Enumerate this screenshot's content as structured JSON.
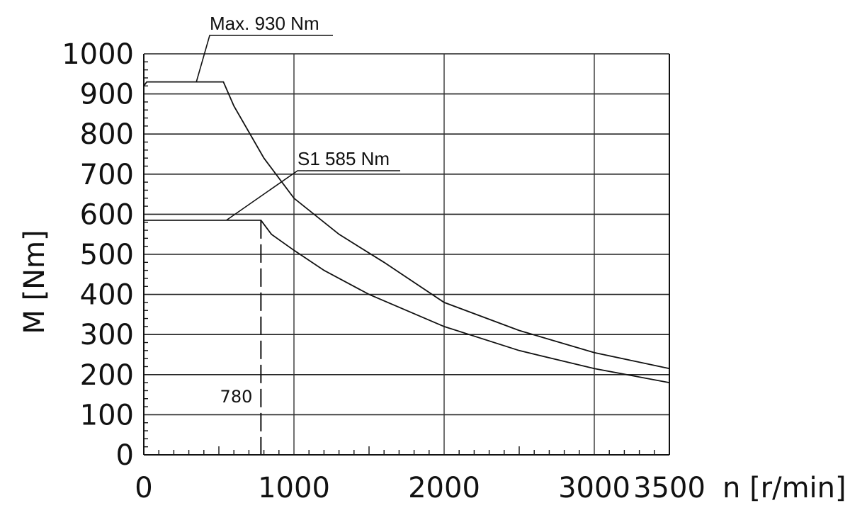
{
  "chart_data": {
    "type": "line",
    "title": "",
    "xlabel": "n [r/min]",
    "ylabel": "M [Nm]",
    "xlim": [
      0,
      3500
    ],
    "ylim": [
      0,
      1000
    ],
    "x_ticks": [
      0,
      1000,
      2000,
      3000,
      3500
    ],
    "y_ticks": [
      0,
      100,
      200,
      300,
      400,
      500,
      600,
      700,
      800,
      900,
      1000
    ],
    "grid": true,
    "series": [
      {
        "x": [
          0,
          20,
          530,
          600,
          800,
          1000,
          1300,
          1600,
          2000,
          2500,
          3000,
          3500
        ],
        "values": [
          920,
          930,
          930,
          870,
          740,
          640,
          550,
          480,
          380,
          310,
          255,
          215
        ]
      },
      {
        "x": [
          0,
          780,
          850,
          1000,
          1200,
          1500,
          2000,
          2500,
          3000,
          3500
        ],
        "values": [
          585,
          585,
          550,
          510,
          460,
          400,
          320,
          260,
          215,
          180
        ]
      }
    ],
    "annotations": [
      {
        "text": "Max. 930 Nm",
        "target_x": 350,
        "target_y": 930
      },
      {
        "text": "S1 585 Nm",
        "target_x": 550,
        "target_y": 585
      },
      {
        "text": "780",
        "vline_x": 780
      }
    ]
  }
}
